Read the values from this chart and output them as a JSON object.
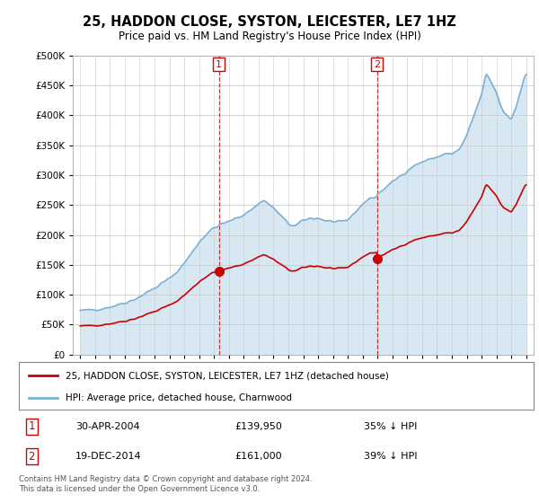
{
  "title": "25, HADDON CLOSE, SYSTON, LEICESTER, LE7 1HZ",
  "subtitle": "Price paid vs. HM Land Registry's House Price Index (HPI)",
  "legend_line1": "25, HADDON CLOSE, SYSTON, LEICESTER, LE7 1HZ (detached house)",
  "legend_line2": "HPI: Average price, detached house, Charnwood",
  "annotation1": {
    "num": "1",
    "date": "30-APR-2004",
    "price": "£139,950",
    "pct": "35% ↓ HPI"
  },
  "annotation2": {
    "num": "2",
    "date": "19-DEC-2014",
    "price": "£161,000",
    "pct": "39% ↓ HPI"
  },
  "footnote": "Contains HM Land Registry data © Crown copyright and database right 2024.\nThis data is licensed under the Open Government Licence v3.0.",
  "price_color": "#cc0000",
  "hpi_color": "#7ab0d4",
  "hpi_fill_color": "#d8e8f3",
  "vline_color": "#cc0000",
  "background_color": "#ffffff",
  "plot_bg_color": "#ffffff",
  "ylim": [
    0,
    500000
  ],
  "yticks": [
    0,
    50000,
    100000,
    150000,
    200000,
    250000,
    300000,
    350000,
    400000,
    450000,
    500000
  ],
  "sale1_x": 2004.33,
  "sale2_x": 2014.96,
  "sale1_y": 139950,
  "sale2_y": 161000,
  "xlim_left": 1994.5,
  "xlim_right": 2025.5
}
